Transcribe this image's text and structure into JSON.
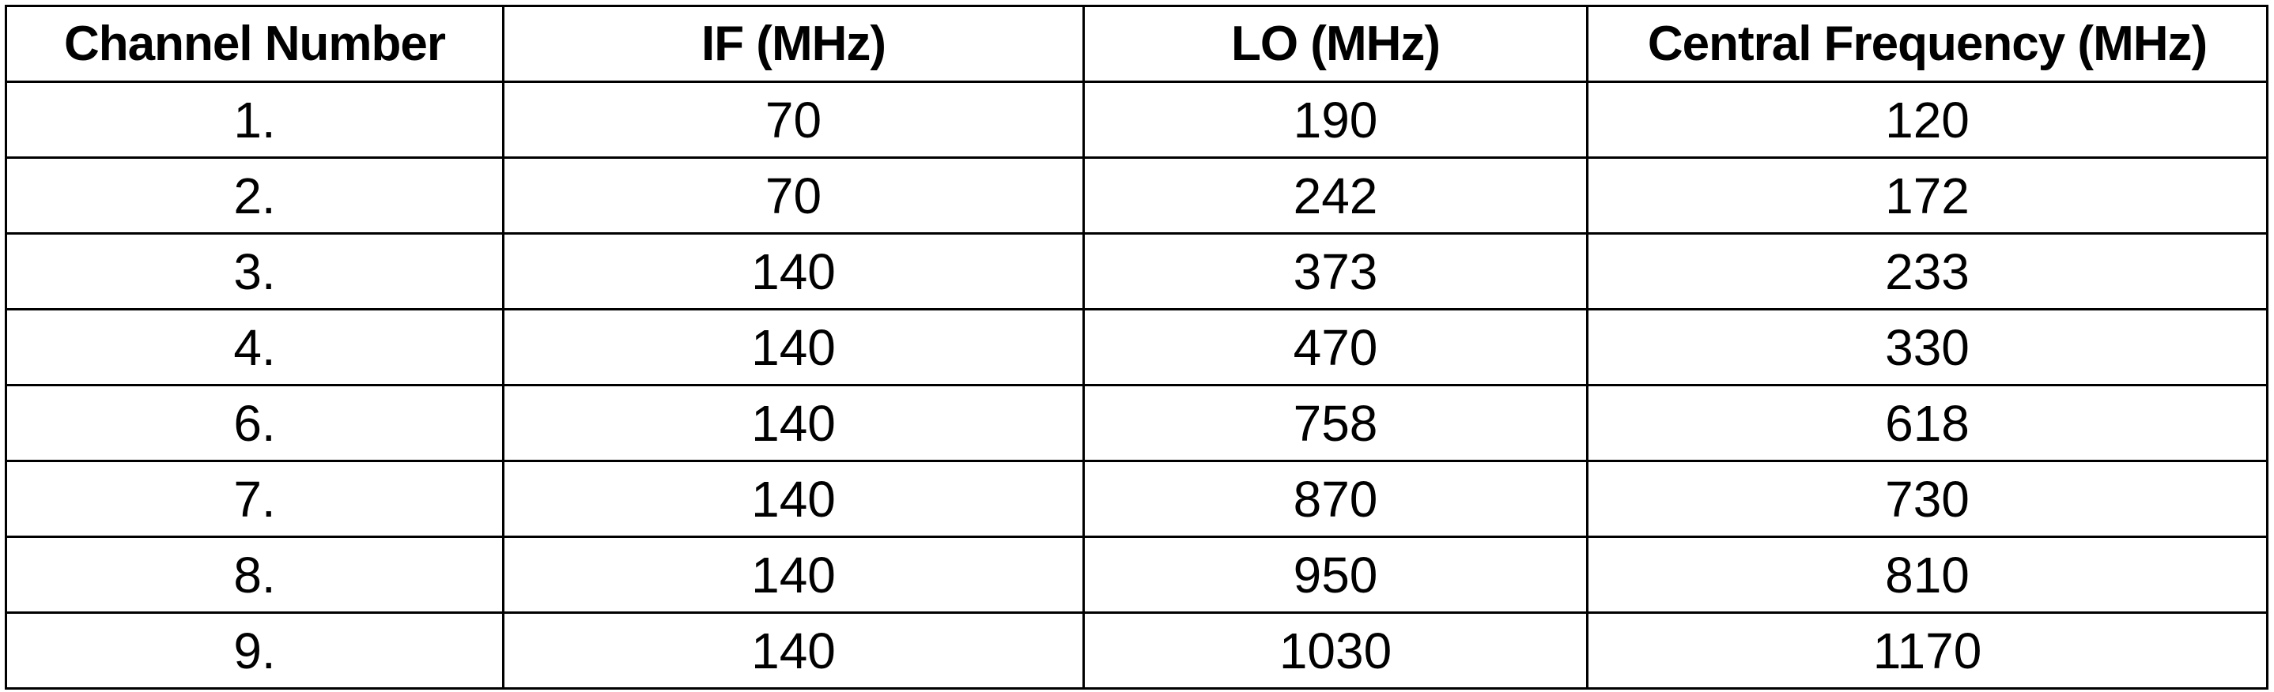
{
  "table": {
    "headers": [
      "Channel Number",
      "IF (MHz)",
      "LO (MHz)",
      "Central Frequency (MHz)"
    ],
    "rows": [
      [
        "1.",
        "70",
        "190",
        "120"
      ],
      [
        "2.",
        "70",
        "242",
        "172"
      ],
      [
        "3.",
        "140",
        "373",
        "233"
      ],
      [
        "4.",
        "140",
        "470",
        "330"
      ],
      [
        "6.",
        "140",
        "758",
        "618"
      ],
      [
        "7.",
        "140",
        "870",
        "730"
      ],
      [
        "8.",
        "140",
        "950",
        "810"
      ],
      [
        "9.",
        "140",
        "1030",
        "1170"
      ]
    ]
  },
  "colors": {
    "border": "#000000",
    "text": "#000000",
    "background": "#ffffff"
  }
}
